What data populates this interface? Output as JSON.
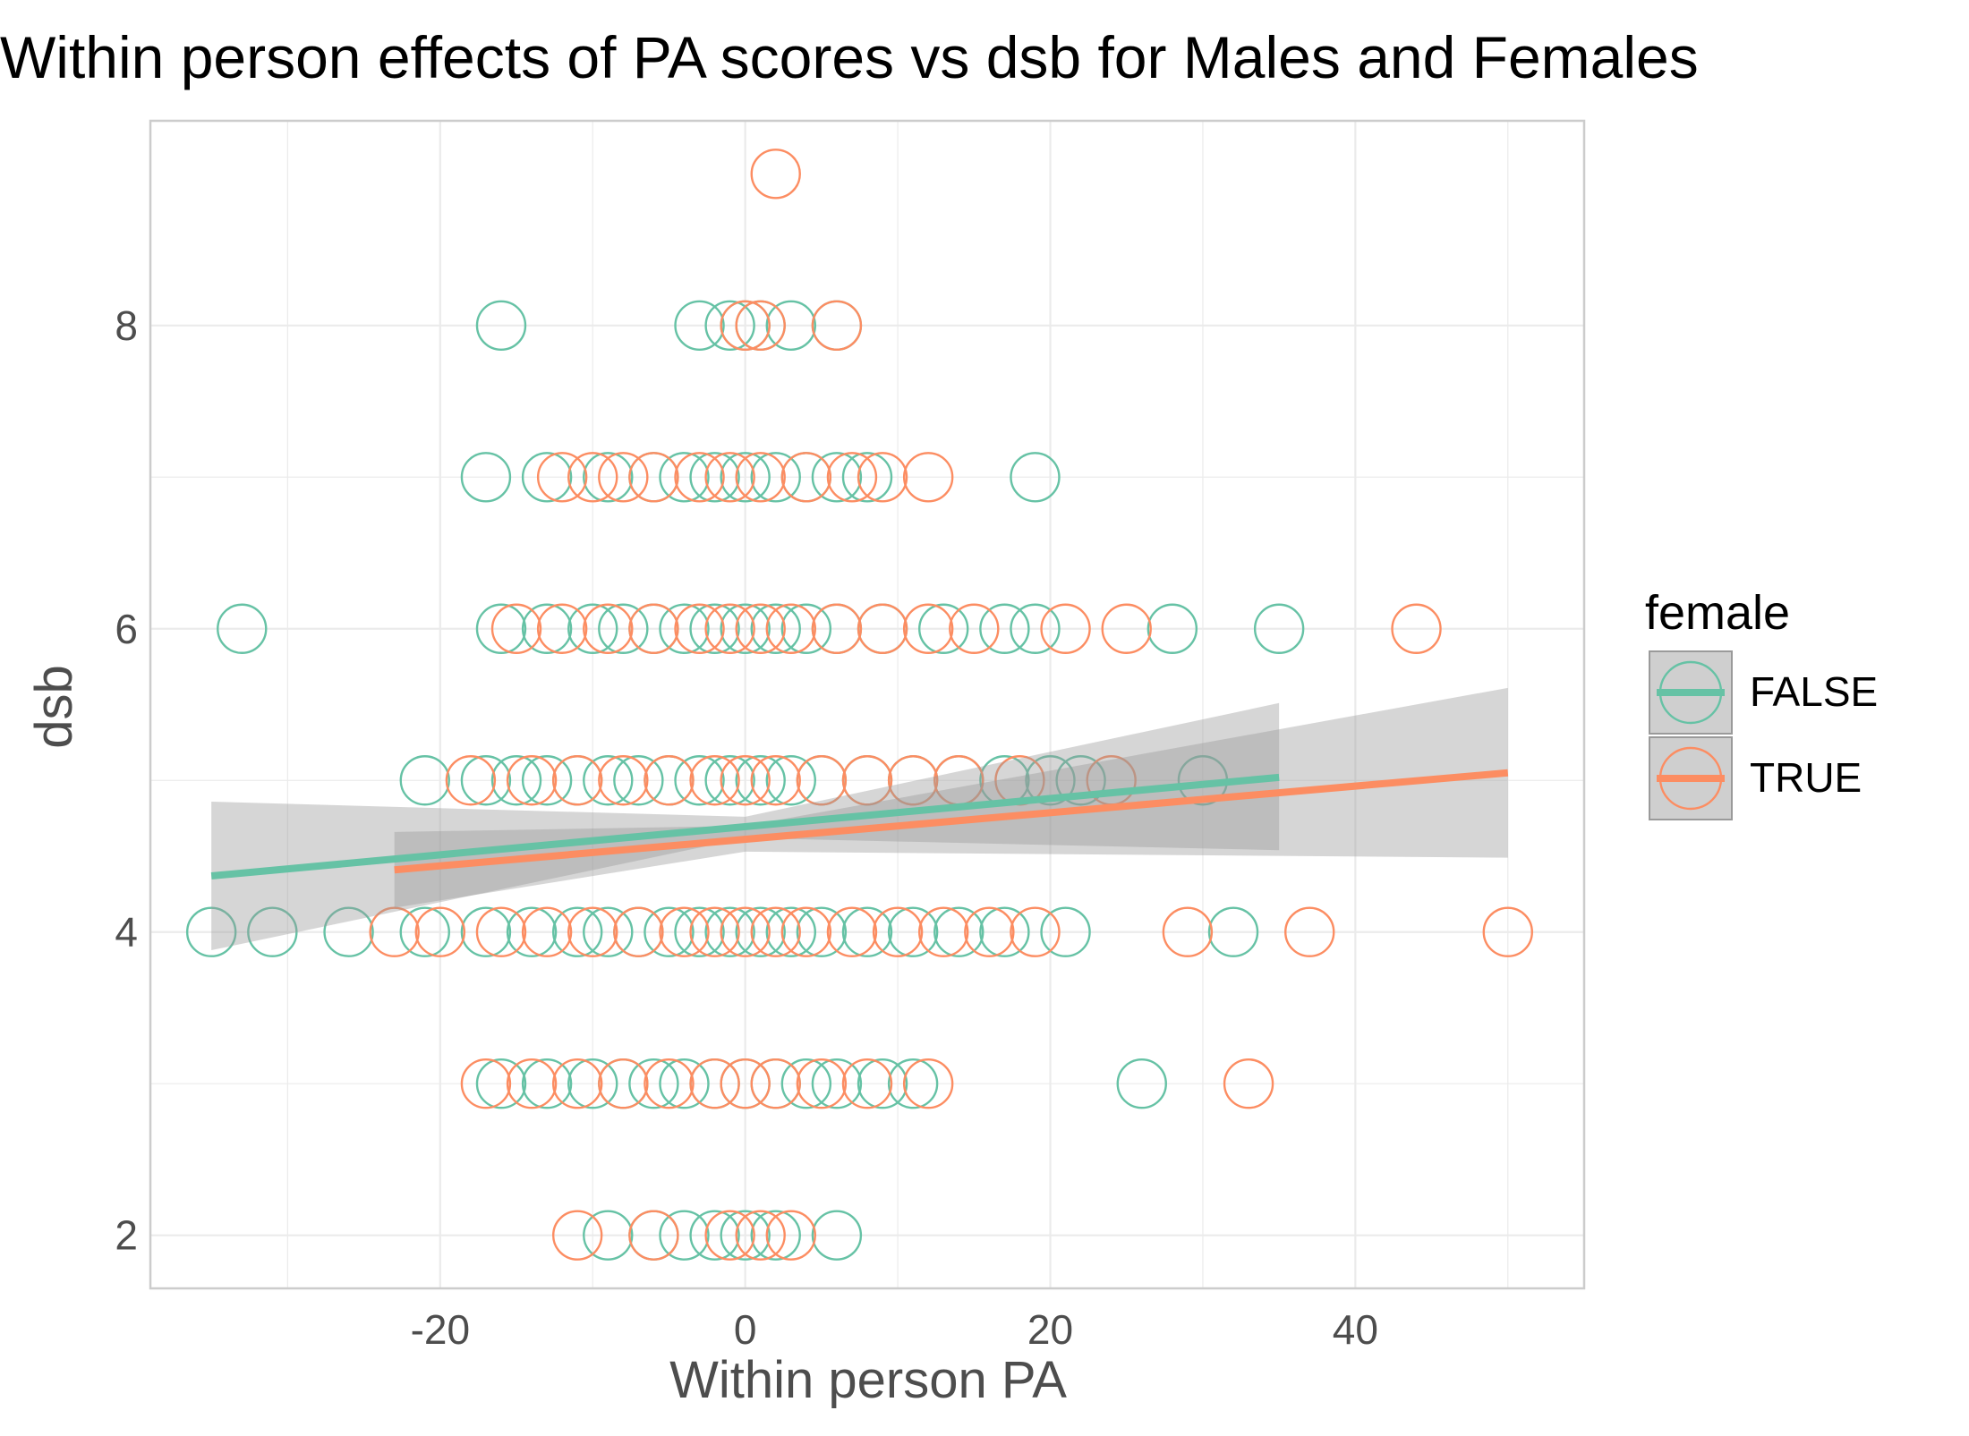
{
  "chart_data": {
    "type": "scatter",
    "title": "Within person effects of PA scores vs dsb for Males and Females",
    "xlabel": "Within person PA",
    "ylabel": "dsb",
    "xlim": [
      -39,
      55
    ],
    "ylim": [
      1.65,
      9.35
    ],
    "x_ticks": [
      -20,
      0,
      20,
      40
    ],
    "x_tick_labels": [
      "-20",
      "0",
      "20",
      "40"
    ],
    "y_ticks": [
      2,
      4,
      6,
      8
    ],
    "y_tick_labels": [
      "2",
      "4",
      "6",
      "8"
    ],
    "grid": true,
    "legend": {
      "title": "female",
      "position": "right",
      "labels": [
        "FALSE",
        "TRUE"
      ]
    },
    "colors": {
      "FALSE": "#66c2a5",
      "TRUE": "#fc8d62",
      "ribbon": "#999999",
      "grid": "#ebebeb",
      "panel_border": "#cccccc",
      "axis_text": "#4d4d4d"
    },
    "series": [
      {
        "name": "FALSE",
        "points": [
          [
            -16,
            8
          ],
          [
            -3,
            8
          ],
          [
            -1,
            8
          ],
          [
            0,
            8
          ],
          [
            1,
            8
          ],
          [
            3,
            8
          ],
          [
            6,
            8
          ],
          [
            -17,
            7
          ],
          [
            -13,
            7
          ],
          [
            -9,
            7
          ],
          [
            -6,
            7
          ],
          [
            -4,
            7
          ],
          [
            -2,
            7
          ],
          [
            0,
            7
          ],
          [
            2,
            7
          ],
          [
            4,
            7
          ],
          [
            6,
            7
          ],
          [
            8,
            7
          ],
          [
            19,
            7
          ],
          [
            -33,
            6
          ],
          [
            -16,
            6
          ],
          [
            -13,
            6
          ],
          [
            -10,
            6
          ],
          [
            -8,
            6
          ],
          [
            -6,
            6
          ],
          [
            -4,
            6
          ],
          [
            -2,
            6
          ],
          [
            0,
            6
          ],
          [
            2,
            6
          ],
          [
            4,
            6
          ],
          [
            6,
            6
          ],
          [
            9,
            6
          ],
          [
            13,
            6
          ],
          [
            17,
            6
          ],
          [
            19,
            6
          ],
          [
            28,
            6
          ],
          [
            35,
            6
          ],
          [
            -21,
            5
          ],
          [
            -17,
            5
          ],
          [
            -15,
            5
          ],
          [
            -13,
            5
          ],
          [
            -11,
            5
          ],
          [
            -9,
            5
          ],
          [
            -7,
            5
          ],
          [
            -5,
            5
          ],
          [
            -3,
            5
          ],
          [
            -1,
            5
          ],
          [
            1,
            5
          ],
          [
            3,
            5
          ],
          [
            5,
            5
          ],
          [
            8,
            5
          ],
          [
            11,
            5
          ],
          [
            14,
            5
          ],
          [
            17,
            5
          ],
          [
            20,
            5
          ],
          [
            22,
            5
          ],
          [
            30,
            5
          ],
          [
            -35,
            4
          ],
          [
            -31,
            4
          ],
          [
            -26,
            4
          ],
          [
            -21,
            4
          ],
          [
            -17,
            4
          ],
          [
            -14,
            4
          ],
          [
            -11,
            4
          ],
          [
            -9,
            4
          ],
          [
            -7,
            4
          ],
          [
            -5,
            4
          ],
          [
            -3,
            4
          ],
          [
            -1,
            4
          ],
          [
            1,
            4
          ],
          [
            3,
            4
          ],
          [
            5,
            4
          ],
          [
            8,
            4
          ],
          [
            11,
            4
          ],
          [
            14,
            4
          ],
          [
            17,
            4
          ],
          [
            21,
            4
          ],
          [
            32,
            4
          ],
          [
            -16,
            3
          ],
          [
            -13,
            3
          ],
          [
            -10,
            3
          ],
          [
            -8,
            3
          ],
          [
            -6,
            3
          ],
          [
            -4,
            3
          ],
          [
            -2,
            3
          ],
          [
            0,
            3
          ],
          [
            2,
            3
          ],
          [
            4,
            3
          ],
          [
            6,
            3
          ],
          [
            9,
            3
          ],
          [
            11,
            3
          ],
          [
            26,
            3
          ],
          [
            -9,
            2
          ],
          [
            -6,
            2
          ],
          [
            -4,
            2
          ],
          [
            -2,
            2
          ],
          [
            0,
            2
          ],
          [
            2,
            2
          ],
          [
            6,
            2
          ]
        ],
        "fit": {
          "x": [
            -35,
            35
          ],
          "y": [
            4.37,
            5.02
          ]
        },
        "ribbon": {
          "x": [
            -35,
            0,
            35
          ],
          "lower": [
            3.88,
            4.62,
            4.54
          ],
          "upper": [
            4.86,
            4.76,
            5.51
          ]
        }
      },
      {
        "name": "TRUE",
        "points": [
          [
            2,
            9
          ],
          [
            0,
            8
          ],
          [
            1,
            8
          ],
          [
            6,
            8
          ],
          [
            -12,
            7
          ],
          [
            -10,
            7
          ],
          [
            -8,
            7
          ],
          [
            -6,
            7
          ],
          [
            -3,
            7
          ],
          [
            -1,
            7
          ],
          [
            1,
            7
          ],
          [
            4,
            7
          ],
          [
            7,
            7
          ],
          [
            9,
            7
          ],
          [
            12,
            7
          ],
          [
            -15,
            6
          ],
          [
            -12,
            6
          ],
          [
            -9,
            6
          ],
          [
            -6,
            6
          ],
          [
            -3,
            6
          ],
          [
            -1,
            6
          ],
          [
            1,
            6
          ],
          [
            3,
            6
          ],
          [
            6,
            6
          ],
          [
            9,
            6
          ],
          [
            12,
            6
          ],
          [
            15,
            6
          ],
          [
            21,
            6
          ],
          [
            25,
            6
          ],
          [
            44,
            6
          ],
          [
            -18,
            5
          ],
          [
            -14,
            5
          ],
          [
            -11,
            5
          ],
          [
            -8,
            5
          ],
          [
            -5,
            5
          ],
          [
            -2,
            5
          ],
          [
            0,
            5
          ],
          [
            2,
            5
          ],
          [
            5,
            5
          ],
          [
            8,
            5
          ],
          [
            11,
            5
          ],
          [
            14,
            5
          ],
          [
            18,
            5
          ],
          [
            24,
            5
          ],
          [
            -23,
            4
          ],
          [
            -20,
            4
          ],
          [
            -16,
            4
          ],
          [
            -13,
            4
          ],
          [
            -10,
            4
          ],
          [
            -7,
            4
          ],
          [
            -4,
            4
          ],
          [
            -2,
            4
          ],
          [
            0,
            4
          ],
          [
            2,
            4
          ],
          [
            4,
            4
          ],
          [
            7,
            4
          ],
          [
            10,
            4
          ],
          [
            13,
            4
          ],
          [
            16,
            4
          ],
          [
            19,
            4
          ],
          [
            29,
            4
          ],
          [
            37,
            4
          ],
          [
            50,
            4
          ],
          [
            -17,
            3
          ],
          [
            -14,
            3
          ],
          [
            -11,
            3
          ],
          [
            -8,
            3
          ],
          [
            -5,
            3
          ],
          [
            -2,
            3
          ],
          [
            0,
            3
          ],
          [
            2,
            3
          ],
          [
            5,
            3
          ],
          [
            8,
            3
          ],
          [
            12,
            3
          ],
          [
            33,
            3
          ],
          [
            -11,
            2
          ],
          [
            -6,
            2
          ],
          [
            -1,
            2
          ],
          [
            1,
            2
          ],
          [
            3,
            2
          ]
        ],
        "fit": {
          "x": [
            -23,
            50
          ],
          "y": [
            4.41,
            5.05
          ]
        },
        "ribbon": {
          "x": [
            -23,
            0,
            50
          ],
          "lower": [
            4.16,
            4.53,
            4.49
          ],
          "upper": [
            4.66,
            4.7,
            5.61
          ]
        }
      }
    ]
  }
}
